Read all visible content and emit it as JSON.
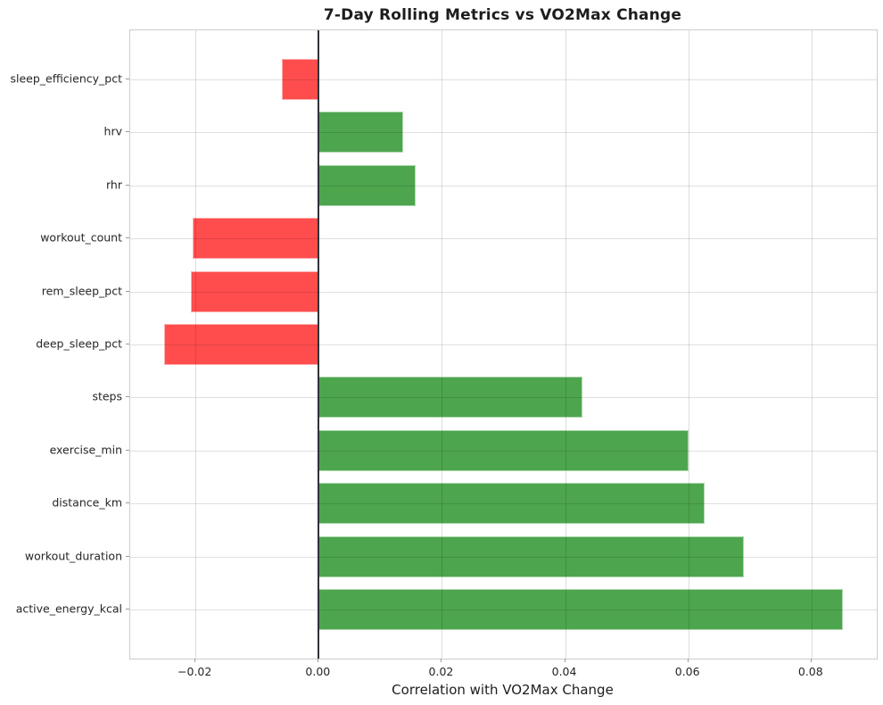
{
  "chart_data": {
    "type": "bar",
    "orientation": "horizontal",
    "title": "7-Day Rolling Metrics vs VO2Max Change",
    "xlabel": "Correlation with VO2Max Change",
    "ylabel": "",
    "categories": [
      "sleep_efficiency_pct",
      "hrv",
      "rhr",
      "workout_count",
      "rem_sleep_pct",
      "deep_sleep_pct",
      "steps",
      "exercise_min",
      "distance_km",
      "workout_duration",
      "active_energy_kcal"
    ],
    "values": [
      -0.006,
      0.0137,
      0.0158,
      -0.0205,
      -0.0208,
      -0.0251,
      0.0428,
      0.06,
      0.0627,
      0.069,
      0.0851
    ],
    "xticks": [
      -0.02,
      0.0,
      0.02,
      0.04,
      0.06,
      0.08
    ],
    "xtick_labels": [
      "−0.02",
      "0.00",
      "0.02",
      "0.04",
      "0.06",
      "0.08"
    ],
    "xlim": [
      -0.0306,
      0.0906
    ],
    "grid": true,
    "legend": false,
    "sort_order": "ascending by absolute correlation (top to bottom)",
    "colors": {
      "positive_bar": "#4da64d",
      "negative_bar": "#ff4d4d",
      "zero_line": "#2f3337",
      "gridline": "#d9d9d9",
      "spine": "#cccccc",
      "text": "#262626"
    }
  }
}
